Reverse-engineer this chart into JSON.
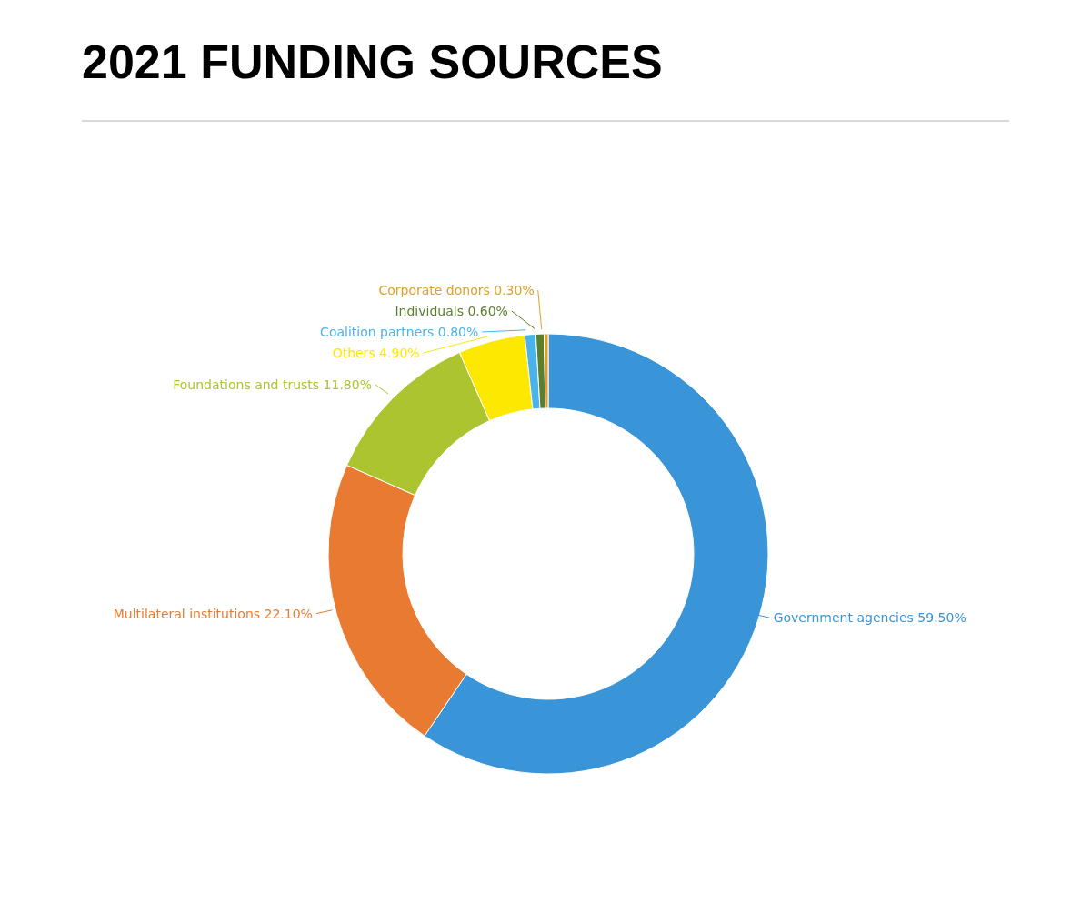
{
  "chart_data": {
    "type": "donut",
    "title": "2021 FUNDING SOURCES",
    "categories": [
      "Government agencies",
      "Multilateral institutions",
      "Foundations and trusts",
      "Others",
      "Coalition partners",
      "Individuals",
      "Corporate donors"
    ],
    "values": [
      59.5,
      22.1,
      11.8,
      4.9,
      0.8,
      0.6,
      0.3
    ],
    "value_labels": [
      "59.50%",
      "22.10%",
      "11.80%",
      "4.90%",
      "0.80%",
      "0.60%",
      "0.30%"
    ],
    "colors": [
      "#3a95d8",
      "#e87b31",
      "#acc42f",
      "#fce800",
      "#4ab3ea",
      "#5b7f2a",
      "#e0a028"
    ]
  }
}
